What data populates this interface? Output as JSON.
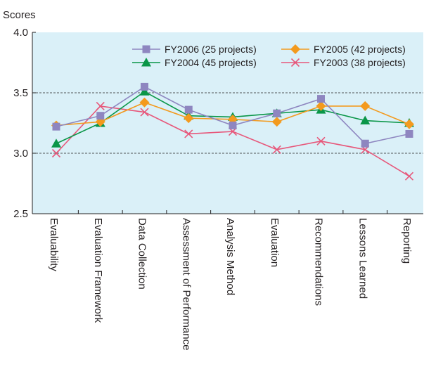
{
  "chart_data": {
    "type": "line",
    "title": "",
    "ylabel": "Scores",
    "xlabel": "",
    "ylim": [
      2.5,
      4.0
    ],
    "yticks": [
      "2.5",
      "3.0",
      "3.5",
      "4.0"
    ],
    "y_tick_values": [
      2.5,
      3.0,
      3.5,
      4.0
    ],
    "grid": "horizontal dashed at 3.0 and 3.5",
    "legend_position": "top-right",
    "plot_background": "#daf0f8",
    "categories": [
      "Evaluability",
      "Evaluation Framework",
      "Data Collection",
      "Assessment of Performance",
      "Analysis Method",
      "Evaluation",
      "Recommendations",
      "Lessons Learned",
      "Reporting"
    ],
    "series": [
      {
        "name": "FY2006 (25 projects)",
        "color": "#8e86c0",
        "marker": "square",
        "values": [
          3.22,
          3.31,
          3.55,
          3.36,
          3.23,
          3.33,
          3.45,
          3.08,
          3.16
        ]
      },
      {
        "name": "FY2005 (42 projects)",
        "color": "#f39a1e",
        "marker": "diamond",
        "values": [
          3.23,
          3.26,
          3.42,
          3.29,
          3.28,
          3.26,
          3.39,
          3.39,
          3.24
        ]
      },
      {
        "name": "FY2004 (45 projects)",
        "color": "#0a9648",
        "marker": "triangle",
        "values": [
          3.08,
          3.25,
          3.51,
          3.31,
          3.3,
          3.33,
          3.36,
          3.27,
          3.25
        ]
      },
      {
        "name": "FY2003 (38 projects)",
        "color": "#e7577a",
        "marker": "x",
        "values": [
          3.0,
          3.39,
          3.34,
          3.16,
          3.18,
          3.03,
          3.1,
          3.03,
          2.81
        ]
      }
    ]
  }
}
